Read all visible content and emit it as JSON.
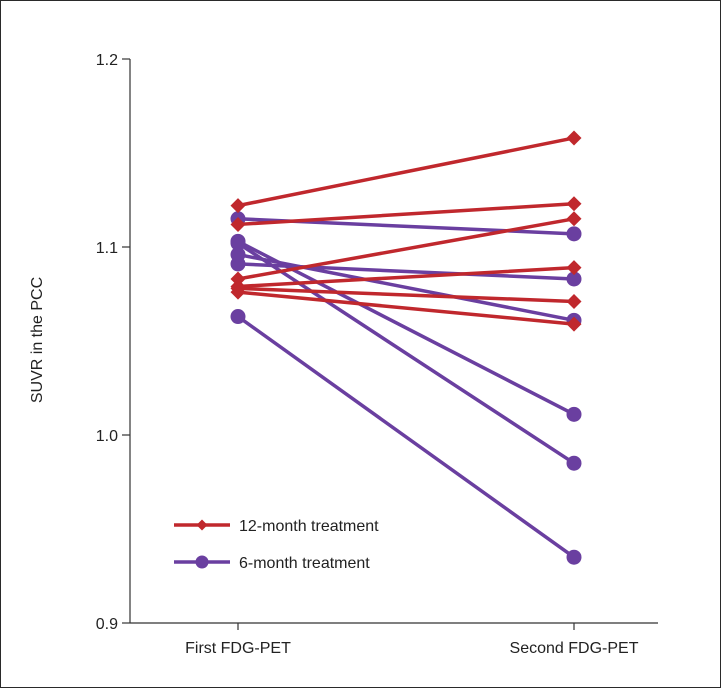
{
  "chart_data": {
    "type": "line",
    "title": "",
    "xlabel": "",
    "ylabel": "SUVR in the PCC",
    "categories": [
      "First FDG-PET",
      "Second FDG-PET"
    ],
    "ylim": [
      0.9,
      1.2
    ],
    "yticks": [
      "0.9",
      "1.0",
      "1.1",
      "1.2"
    ],
    "grid": false,
    "legend_position": "bottom-left",
    "legend": [
      {
        "label": "12-month treatment",
        "color": "#c0282d",
        "marker": "diamond"
      },
      {
        "label": "6-month treatment",
        "color": "#6a3fa0",
        "marker": "circle"
      }
    ],
    "groups": [
      {
        "name": "12-month treatment",
        "color": "#c0282d",
        "marker": "diamond",
        "pairs": [
          [
            1.122,
            1.158
          ],
          [
            1.112,
            1.123
          ],
          [
            1.083,
            1.115
          ],
          [
            1.079,
            1.089
          ],
          [
            1.078,
            1.071
          ],
          [
            1.076,
            1.059
          ]
        ]
      },
      {
        "name": "6-month treatment",
        "color": "#6a3fa0",
        "marker": "circle",
        "pairs": [
          [
            1.115,
            1.107
          ],
          [
            1.091,
            1.083
          ],
          [
            1.096,
            1.061
          ],
          [
            1.103,
            1.011
          ],
          [
            1.102,
            0.985
          ],
          [
            1.063,
            0.935
          ]
        ]
      }
    ]
  }
}
